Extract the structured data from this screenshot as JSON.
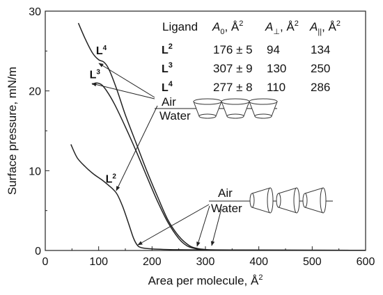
{
  "chart_data": {
    "type": "line",
    "xlabel": "Area per molecule, Å",
    "xlabel_sup": "2",
    "ylabel": "Surface pressure, mN/m",
    "xlim": [
      0,
      600
    ],
    "ylim": [
      0,
      30
    ],
    "x_ticks": [
      "0",
      "100",
      "200",
      "300",
      "400",
      "500",
      "600"
    ],
    "y_ticks": [
      "0",
      "10",
      "20",
      "30"
    ],
    "series": [
      {
        "name": "L4",
        "x": [
          62,
          75,
          88,
          100,
          110,
          120,
          135,
          150,
          170,
          190,
          210,
          230,
          250,
          270,
          285,
          300,
          320,
          400,
          600
        ],
        "y": [
          28.5,
          26.5,
          24.8,
          23.9,
          23.6,
          22.6,
          20.0,
          17.0,
          13.5,
          10.0,
          6.8,
          3.8,
          1.8,
          0.6,
          0.25,
          0.12,
          0.08,
          0.04,
          0.02
        ]
      },
      {
        "name": "L3",
        "x": [
          88,
          95,
          105,
          115,
          130,
          150,
          170,
          190,
          210,
          230,
          250,
          265,
          280,
          300,
          350,
          600
        ],
        "y": [
          20.8,
          21.0,
          20.8,
          20.0,
          18.3,
          15.5,
          12.5,
          9.3,
          6.2,
          3.5,
          1.5,
          0.6,
          0.25,
          0.1,
          0.05,
          0.02
        ]
      },
      {
        "name": "L2",
        "x": [
          48,
          60,
          75,
          90,
          105,
          118,
          128,
          135,
          145,
          155,
          165,
          172,
          180,
          200,
          250,
          350,
          600
        ],
        "y": [
          13.3,
          11.6,
          10.5,
          9.6,
          8.9,
          8.2,
          7.6,
          7.0,
          5.5,
          3.6,
          1.6,
          0.7,
          0.35,
          0.2,
          0.1,
          0.05,
          0.02
        ]
      }
    ],
    "curve_labels": [
      {
        "text": "L",
        "sup": "4",
        "x": 95,
        "y": 24.6
      },
      {
        "text": "L",
        "sup": "3",
        "x": 83,
        "y": 21.6
      },
      {
        "text": "L",
        "sup": "2",
        "x": 113,
        "y": 8.5
      }
    ],
    "table": {
      "headers": [
        "Ligand",
        "A",
        "0",
        ", Å",
        "2",
        "A",
        "⊥",
        ", Å",
        "2",
        "A",
        "||",
        ", Å",
        "2"
      ],
      "rows": [
        {
          "ligand": "L",
          "sup": "2",
          "a0": "176 ± 5",
          "aperp": "94",
          "apar": "134"
        },
        {
          "ligand": "L",
          "sup": "3",
          "a0": "307 ± 9",
          "aperp": "130",
          "apar": "250"
        },
        {
          "ligand": "L",
          "sup": "4",
          "a0": "277 ± 8",
          "aperp": "110",
          "apar": "286"
        }
      ]
    },
    "interface_labels": {
      "upper_air": "Air",
      "upper_water": "Water",
      "lower_air": "Air",
      "lower_water": "Water"
    },
    "grid": false,
    "legend": "none"
  }
}
